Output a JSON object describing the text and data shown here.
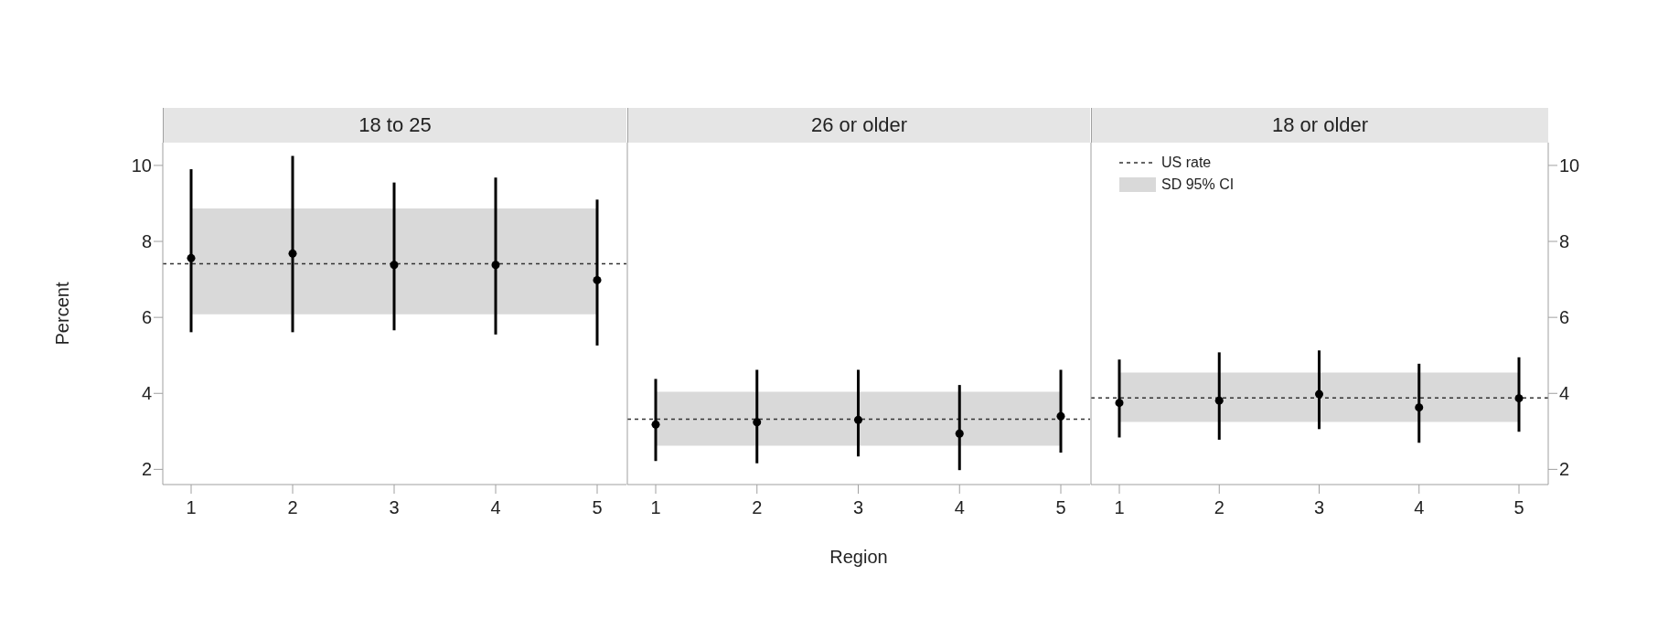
{
  "chart_data": [
    {
      "type": "scatter",
      "title": "18 to 25",
      "ylabel": "Percent",
      "categories": [
        "1",
        "2",
        "3",
        "4",
        "5"
      ],
      "marker": "circle",
      "ylim": [
        1.6,
        10.6
      ],
      "yticks": [
        2,
        4,
        6,
        8,
        10
      ],
      "grid": false,
      "legend": false,
      "series": [
        {
          "color": "#000000",
          "values": [
            7.56,
            7.68,
            7.38,
            7.38,
            6.98
          ],
          "errors": [
            [
              5.61,
              9.9
            ],
            [
              5.61,
              10.25
            ],
            [
              5.66,
              9.55
            ],
            [
              5.55,
              9.68
            ],
            [
              5.26,
              9.1
            ]
          ]
        }
      ],
      "ref_lines": [
        {
          "axis": "y",
          "value": 7.41,
          "color": "#333333",
          "line_style": "dashed"
        }
      ],
      "bands": [
        {
          "axis": "y",
          "from": 6.08,
          "to": 8.87,
          "color": "#d9d9d9"
        }
      ]
    },
    {
      "type": "scatter",
      "title": "26 or older",
      "xlabel": "Region",
      "categories": [
        "1",
        "2",
        "3",
        "4",
        "5"
      ],
      "marker": "circle",
      "ylim": [
        1.6,
        10.6
      ],
      "yticks": [
        2,
        4,
        6,
        8,
        10
      ],
      "grid": false,
      "legend": false,
      "tick_labels": "x",
      "series": [
        {
          "color": "#000000",
          "values": [
            3.18,
            3.24,
            3.3,
            2.94,
            3.4
          ],
          "errors": [
            [
              2.22,
              4.38
            ],
            [
              2.16,
              4.62
            ],
            [
              2.34,
              4.62
            ],
            [
              1.98,
              4.22
            ],
            [
              2.44,
              4.62
            ]
          ]
        }
      ],
      "ref_lines": [
        {
          "axis": "y",
          "value": 3.32,
          "color": "#333333",
          "line_style": "dashed"
        }
      ],
      "bands": [
        {
          "axis": "y",
          "from": 2.62,
          "to": 4.04,
          "color": "#d9d9d9"
        }
      ]
    },
    {
      "type": "scatter",
      "title": "18 or older",
      "categories": [
        "1",
        "2",
        "3",
        "4",
        "5"
      ],
      "marker": "circle",
      "ylim": [
        1.6,
        10.6
      ],
      "yticks": [
        2,
        4,
        6,
        8,
        10
      ],
      "grid": false,
      "legend": "top left",
      "series": [
        {
          "color": "#000000",
          "values": [
            3.75,
            3.81,
            3.98,
            3.63,
            3.87
          ],
          "errors": [
            [
              2.84,
              4.89
            ],
            [
              2.78,
              5.08
            ],
            [
              3.06,
              5.13
            ],
            [
              2.7,
              4.78
            ],
            [
              2.99,
              4.95
            ]
          ]
        }
      ],
      "ref_lines": [
        {
          "axis": "y",
          "value": 3.88,
          "label": "US rate",
          "color": "#333333",
          "line_style": "dashed"
        }
      ],
      "bands": [
        {
          "axis": "y",
          "from": 3.25,
          "to": 4.55,
          "label": "SD 95% CI",
          "color": "#d9d9d9"
        }
      ]
    }
  ]
}
